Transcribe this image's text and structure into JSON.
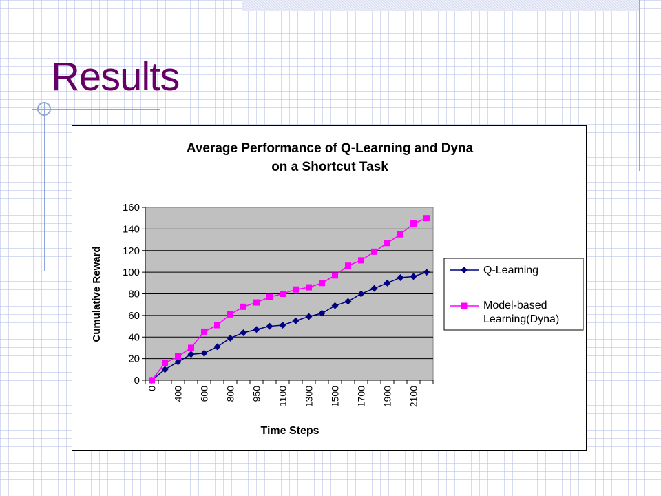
{
  "slide": {
    "title": "Results"
  },
  "colors": {
    "title": "#660066",
    "plot_background": "#c0c0c0",
    "q_learning": "#000080",
    "dyna": "#ff00ff",
    "decor_lines": "#8fa6d8"
  },
  "chart_data": {
    "type": "line",
    "title_lines": [
      "Average Performance of Q-Learning and Dyna",
      "on a Shortcut Task"
    ],
    "xlabel": "Time Steps",
    "ylabel": "Cumulative Reward",
    "ylim": [
      0,
      160
    ],
    "yticks": [
      0,
      20,
      40,
      60,
      80,
      100,
      120,
      140,
      160
    ],
    "xtick_labels": [
      "0",
      "400",
      "600",
      "800",
      "950",
      "1100",
      "1300",
      "1500",
      "1700",
      "1900",
      "2100"
    ],
    "grid": true,
    "legend_position": "right",
    "point_count": 22,
    "series": [
      {
        "name": "Q-Learning",
        "marker": "diamond",
        "color": "#000080",
        "values": [
          0,
          10,
          17,
          24,
          25,
          31,
          39,
          44,
          47,
          50,
          51,
          55,
          59,
          62,
          69,
          73,
          80,
          85,
          90,
          95,
          96,
          100
        ]
      },
      {
        "name": "Model-based Learning(Dyna)",
        "legend_lines": [
          "Model-based",
          "Learning(Dyna)"
        ],
        "marker": "square",
        "color": "#ff00ff",
        "values": [
          0,
          16,
          22,
          30,
          45,
          51,
          61,
          68,
          72,
          77,
          80,
          84,
          86,
          90,
          97,
          106,
          111,
          119,
          127,
          135,
          145,
          150
        ]
      }
    ]
  }
}
